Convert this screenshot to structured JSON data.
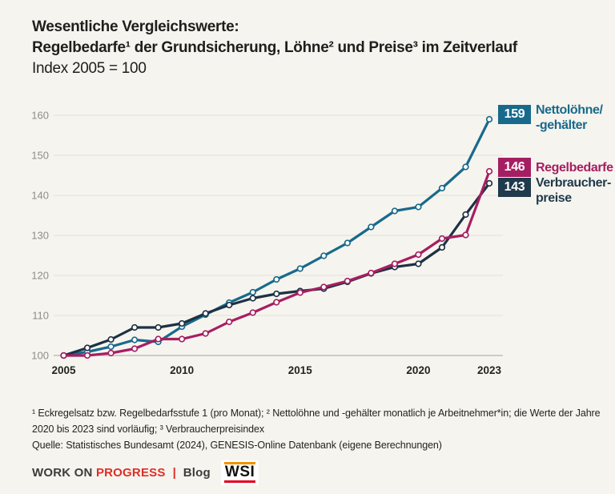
{
  "title": {
    "line1": "Wesentliche Vergleichswerte:",
    "line2": "Regelbedarfe¹ der Grundsicherung, Löhne² und Preise³ im Zeitverlauf",
    "line3": "Index 2005 = 100"
  },
  "chart_data": {
    "type": "line",
    "x": [
      2005,
      2006,
      2007,
      2008,
      2009,
      2010,
      2011,
      2012,
      2013,
      2014,
      2015,
      2016,
      2017,
      2018,
      2019,
      2020,
      2021,
      2022,
      2023
    ],
    "series": [
      {
        "id": "nettoloehne",
        "name": "Nettolöhne/-gehälter",
        "color": "#186a8c",
        "end_label": "159",
        "values": [
          100,
          100.9,
          102.2,
          103.9,
          103.4,
          107.2,
          110.2,
          113.2,
          115.8,
          119.0,
          121.7,
          124.9,
          128.1,
          132.1,
          136.1,
          137.1,
          141.8,
          147.1,
          159
        ]
      },
      {
        "id": "regelbedarfe",
        "name": "Regelbedarfe",
        "color": "#a61e62",
        "end_label": "146",
        "values": [
          100,
          100,
          100.6,
          101.7,
          104.1,
          104.1,
          105.5,
          108.4,
          110.7,
          113.3,
          115.7,
          117.1,
          118.6,
          120.6,
          122.9,
          125.2,
          129.2,
          130.1,
          146
        ]
      },
      {
        "id": "verbraucherpreise",
        "name": "Verbraucherpreise",
        "color": "#1d3144",
        "end_label": "143",
        "values": [
          100,
          101.9,
          104.0,
          107.0,
          107.0,
          108.0,
          110.5,
          112.6,
          114.3,
          115.4,
          116.1,
          116.7,
          118.4,
          120.5,
          122.1,
          122.9,
          127.0,
          135.2,
          143
        ]
      }
    ],
    "title": "Wesentliche Vergleichswerte: Regelbedarfe der Grundsicherung, Löhne und Preise im Zeitverlauf",
    "subtitle": "Index 2005 = 100",
    "xlabel": "",
    "ylabel": "",
    "ylim": [
      100,
      160
    ],
    "yticks": [
      100,
      110,
      120,
      130,
      140,
      150,
      160
    ],
    "xticks": [
      2005,
      2010,
      2015,
      2020,
      2023
    ],
    "grid": "horizontal",
    "legend_position": "right-of-line-ends",
    "draw_order": [
      0,
      2,
      1
    ]
  },
  "legend": {
    "nettoloehne": {
      "value": "159",
      "label": "Nettolöhne/\n-gehälter"
    },
    "regelbedarfe": {
      "value": "146",
      "label": "Regelbedarfe"
    },
    "verbraucherpreise": {
      "value": "143",
      "label": "Verbraucher-\npreise"
    }
  },
  "footnotes": {
    "notes": "¹ Eckregelsatz bzw. Regelbedarfsstufe 1 (pro Monat);  ² Nettolöhne und -gehälter monatlich je Arbeitnehmer*in; die Werte der Jahre 2020 bis 2023 sind vorläufig;  ³ Verbraucherpreisindex",
    "source": "Quelle: Statistisches Bundesamt (2024), GENESIS-Online Datenbank (eigene Berechnungen)"
  },
  "footer": {
    "brand": "WORK ON",
    "brand_accent": "PROGRESS",
    "separator": "|",
    "blog": "Blog",
    "logo": "WSI"
  },
  "colors": {
    "background": "#f6f4ee",
    "teal": "#186a8c",
    "magenta": "#a61e62",
    "navy_line": "#1d3144",
    "navy_box": "#1e3a4c",
    "grid_line": "#e3e1da",
    "axis_line": "#b4b2ac",
    "ytick_text": "#8f8d87",
    "xtick_text": "#24241f",
    "accent_red": "#dc2f27",
    "wsi_orange": "#f39200",
    "wsi_red": "#e2001a"
  }
}
